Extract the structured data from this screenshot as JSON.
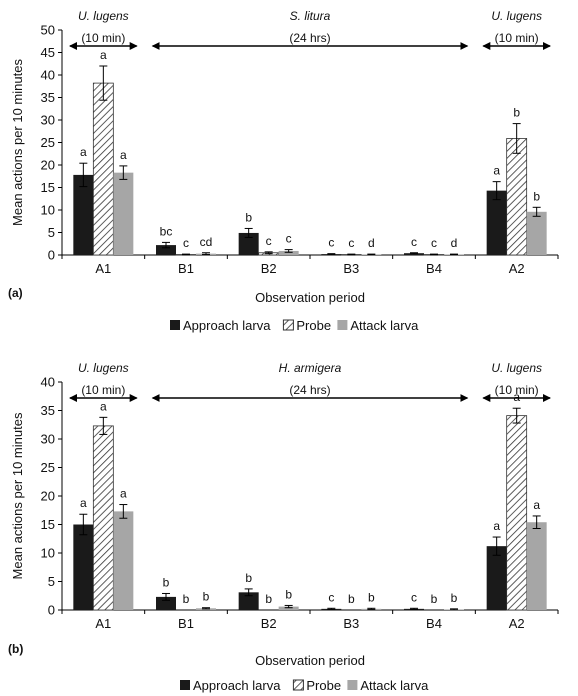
{
  "chart_data": [
    {
      "type": "bar",
      "panel_label": "(a)",
      "categories": [
        "A1",
        "B1",
        "B2",
        "B3",
        "B4",
        "A2"
      ],
      "xlabel": "Observation period",
      "ylabel": "Mean actions per 10 minutes",
      "ylim": [
        0,
        50
      ],
      "yticks": [
        0,
        5,
        10,
        15,
        20,
        25,
        30,
        35,
        40,
        45,
        50
      ],
      "grid": false,
      "legend": "bottom",
      "series": [
        {
          "name": "Approach larva",
          "values": [
            17.8,
            2.2,
            4.9,
            0.2,
            0.4,
            14.3
          ],
          "errors": [
            2.6,
            0.6,
            1.0,
            0.1,
            0.1,
            2.0
          ],
          "letters": [
            "a",
            "bc",
            "b",
            "c",
            "c",
            "a"
          ],
          "color": "#1a1a1a",
          "pattern": "solid"
        },
        {
          "name": "Probe",
          "values": [
            38.2,
            0.1,
            0.5,
            0.1,
            0.1,
            25.9
          ],
          "errors": [
            3.8,
            0.1,
            0.2,
            0.1,
            0.1,
            3.3
          ],
          "letters": [
            "a",
            "c",
            "c",
            "c",
            "c",
            "b"
          ],
          "color": "#ffffff",
          "pattern": "hatch"
        },
        {
          "name": "Attack larva",
          "values": [
            18.3,
            0.3,
            0.9,
            0.1,
            0.1,
            9.6
          ],
          "errors": [
            1.5,
            0.2,
            0.3,
            0.1,
            0.1,
            1.0
          ],
          "letters": [
            "a",
            "cd",
            "c",
            "d",
            "d",
            "b"
          ],
          "color": "#a6a6a6",
          "pattern": "solid"
        }
      ],
      "annotations": [
        {
          "species": "U. lugens",
          "duration": "(10 min)",
          "span": [
            "A1",
            "A1"
          ]
        },
        {
          "species": "S. litura",
          "duration": "(24 hrs)",
          "span": [
            "B1",
            "B4"
          ]
        },
        {
          "species": "U. lugens",
          "duration": "(10 min)",
          "span": [
            "A2",
            "A2"
          ]
        }
      ]
    },
    {
      "type": "bar",
      "panel_label": "(b)",
      "categories": [
        "A1",
        "B1",
        "B2",
        "B3",
        "B4",
        "A2"
      ],
      "xlabel": "Observation period",
      "ylabel": "Mean actions per 10 minutes",
      "ylim": [
        0,
        40
      ],
      "yticks": [
        0,
        5,
        10,
        15,
        20,
        25,
        30,
        35,
        40
      ],
      "grid": false,
      "legend": "bottom",
      "series": [
        {
          "name": "Approach larva",
          "values": [
            15.0,
            2.3,
            3.1,
            0.2,
            0.2,
            11.2
          ],
          "errors": [
            1.8,
            0.6,
            0.6,
            0.1,
            0.1,
            1.6
          ],
          "letters": [
            "a",
            "b",
            "b",
            "c",
            "c",
            "a"
          ],
          "color": "#1a1a1a",
          "pattern": "solid"
        },
        {
          "name": "Probe",
          "values": [
            32.3,
            0.0,
            0.0,
            0.0,
            0.0,
            34.1
          ],
          "errors": [
            1.5,
            0.0,
            0.0,
            0.0,
            0.0,
            1.3
          ],
          "letters": [
            "a",
            "b",
            "b",
            "b",
            "b",
            "a"
          ],
          "color": "#ffffff",
          "pattern": "hatch"
        },
        {
          "name": "Attack larva",
          "values": [
            17.3,
            0.3,
            0.6,
            0.2,
            0.1,
            15.4
          ],
          "errors": [
            1.2,
            0.1,
            0.2,
            0.1,
            0.1,
            1.1
          ],
          "letters": [
            "a",
            "b",
            "b",
            "b",
            "b",
            "a"
          ],
          "color": "#a6a6a6",
          "pattern": "solid"
        }
      ],
      "annotations": [
        {
          "species": "U. lugens",
          "duration": "(10 min)",
          "span": [
            "A1",
            "A1"
          ]
        },
        {
          "species": "H. armigera",
          "duration": "(24 hrs)",
          "span": [
            "B1",
            "B4"
          ]
        },
        {
          "species": "U. lugens",
          "duration": "(10 min)",
          "span": [
            "A2",
            "A2"
          ]
        }
      ]
    }
  ]
}
